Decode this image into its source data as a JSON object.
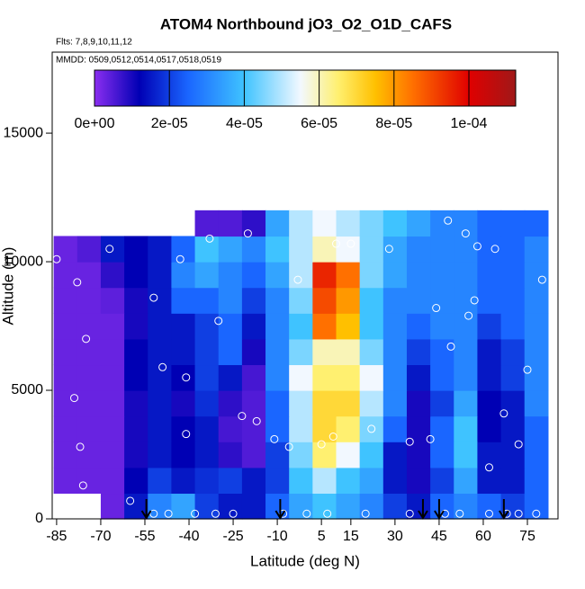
{
  "chart_data": {
    "type": "heatmap",
    "title": "ATOM4 Northbound jO3_O2_O1D_CAFS",
    "subtitle": "Flts: 7,8,9,10,11,12",
    "annotation": "MMDD: 0509,0512,0514,0517,0518,0519",
    "xlabel": "Latitude (deg N)",
    "ylabel": "Altitude (m)",
    "xlim": [
      -86.5,
      85.4
    ],
    "ylim": [
      0,
      18150
    ],
    "xticks": [
      -85,
      -70,
      -55,
      -40,
      -25,
      -10,
      5,
      15,
      30,
      45,
      60,
      75
    ],
    "yticks": [
      0,
      5000,
      10000,
      15000
    ],
    "x_edges": [
      -86,
      -78,
      -70,
      -62,
      -54,
      -46,
      -38,
      -30,
      -22,
      -14,
      -6,
      2,
      10,
      18,
      26,
      34,
      42,
      50,
      58,
      66,
      74,
      82
    ],
    "y_edges": [
      0,
      1000,
      2000,
      3000,
      4000,
      5000,
      6000,
      7000,
      8000,
      9000,
      10000,
      11000,
      12000
    ],
    "z": [
      [
        null,
        null,
        3e-06,
        1.5e-05,
        3e-05,
        3.5e-05,
        2e-05,
        1.5e-05,
        1.5e-05,
        2.5e-05,
        3.5e-05,
        4e-05,
        3.5e-05,
        3e-05,
        2e-05,
        1.5e-05,
        2.5e-05,
        3e-05,
        2.5e-05,
        2e-05,
        2.5e-05
      ],
      [
        3e-06,
        3e-06,
        3e-06,
        1.2e-05,
        2e-05,
        1.5e-05,
        1.8e-05,
        2e-05,
        1.5e-05,
        2e-05,
        4e-05,
        5e-05,
        4e-05,
        3.5e-05,
        1.5e-05,
        1e-05,
        2e-05,
        3.5e-05,
        1.5e-05,
        1.5e-05,
        2.5e-05
      ],
      [
        3e-06,
        3e-06,
        3e-06,
        1e-05,
        1.5e-05,
        1.2e-05,
        1.5e-05,
        8e-06,
        5e-06,
        2e-05,
        4.5e-05,
        6.5e-05,
        5.5e-05,
        4e-05,
        1.5e-05,
        1e-05,
        2.5e-05,
        4e-05,
        1.5e-05,
        1.5e-05,
        2.5e-05
      ],
      [
        3e-06,
        3e-06,
        3e-06,
        1e-05,
        1.5e-05,
        1.2e-05,
        1.5e-05,
        6e-06,
        5e-06,
        2.5e-05,
        5e-05,
        7e-05,
        6.5e-05,
        4.5e-05,
        2.5e-05,
        1e-05,
        2.5e-05,
        4e-05,
        1.2e-05,
        1.5e-05,
        2.5e-05
      ],
      [
        3e-06,
        3e-06,
        3e-06,
        1e-05,
        1.5e-05,
        1e-05,
        1.8e-05,
        8e-06,
        5e-06,
        2.5e-05,
        5e-05,
        7e-05,
        7e-05,
        5e-05,
        3e-05,
        1e-05,
        2e-05,
        3.5e-05,
        1.2e-05,
        1.5e-05,
        3e-05
      ],
      [
        3e-06,
        3e-06,
        3e-06,
        1.2e-05,
        1.5e-05,
        1.2e-05,
        2e-05,
        1.5e-05,
        6e-06,
        3e-05,
        5.5e-05,
        6.5e-05,
        6.5e-05,
        5.5e-05,
        3e-05,
        1.5e-05,
        2.5e-05,
        3e-05,
        1.5e-05,
        2e-05,
        3e-05
      ],
      [
        3e-06,
        3e-06,
        3e-06,
        1.2e-05,
        1.5e-05,
        1.5e-05,
        2e-05,
        2.5e-05,
        1e-05,
        3e-05,
        4.5e-05,
        6e-05,
        6e-05,
        4.5e-05,
        3e-05,
        2e-05,
        2.5e-05,
        3e-05,
        1.5e-05,
        2e-05,
        3e-05
      ],
      [
        3e-06,
        3e-06,
        3e-06,
        1e-05,
        1.5e-05,
        1.5e-05,
        2e-05,
        2.5e-05,
        1.5e-05,
        3e-05,
        4e-05,
        8.5e-05,
        7.5e-05,
        4e-05,
        3e-05,
        2.5e-05,
        3e-05,
        3e-05,
        2e-05,
        2.5e-05,
        3e-05
      ],
      [
        3e-06,
        3e-06,
        4e-06,
        1e-05,
        1.5e-05,
        2.5e-05,
        2.5e-05,
        3e-05,
        2e-05,
        3e-05,
        4.5e-05,
        9e-05,
        8e-05,
        4e-05,
        3e-05,
        3e-05,
        3e-05,
        3e-05,
        2.5e-05,
        2.5e-05,
        3e-05
      ],
      [
        3e-06,
        3e-06,
        8e-06,
        1.2e-05,
        1.5e-05,
        3e-05,
        3.5e-05,
        3e-05,
        2.5e-05,
        3.5e-05,
        5e-05,
        9.5e-05,
        8.5e-05,
        4.5e-05,
        3.5e-05,
        3e-05,
        3e-05,
        3e-05,
        2.5e-05,
        2.5e-05,
        3e-05
      ],
      [
        3e-06,
        5e-06,
        1.5e-05,
        1.2e-05,
        1.5e-05,
        2.5e-05,
        4e-05,
        3.5e-05,
        3e-05,
        4e-05,
        5e-05,
        6e-05,
        5.5e-05,
        4.5e-05,
        3.5e-05,
        3e-05,
        3e-05,
        3e-05,
        2.5e-05,
        2.5e-05,
        3e-05
      ],
      [
        null,
        null,
        null,
        null,
        null,
        null,
        5e-06,
        5e-06,
        8e-06,
        3.5e-05,
        5e-05,
        5.5e-05,
        5e-05,
        4.5e-05,
        4e-05,
        3.5e-05,
        3e-05,
        3e-05,
        2.5e-05,
        2.5e-05,
        2.5e-05
      ]
    ],
    "colorscale": [
      [
        0,
        "#8b2ef0"
      ],
      [
        1.2e-05,
        "#0000b4"
      ],
      [
        2.5e-05,
        "#1a66ff"
      ],
      [
        4e-05,
        "#3fc3ff"
      ],
      [
        5.5e-05,
        "#f2f8ff"
      ],
      [
        6.5e-05,
        "#fff070"
      ],
      [
        7.5e-05,
        "#ffc000"
      ],
      [
        8.5e-05,
        "#ff7000"
      ],
      [
        0.0001,
        "#e00000"
      ],
      [
        0.0001125,
        "#a01818"
      ]
    ],
    "clim": [
      0,
      0.0001125
    ],
    "cticks": [
      {
        "value": 0,
        "label": "0e+00"
      },
      {
        "value": 2e-05,
        "label": "2e-05"
      },
      {
        "value": 4e-05,
        "label": "4e-05"
      },
      {
        "value": 6e-05,
        "label": "6e-05"
      },
      {
        "value": 8e-05,
        "label": "8e-05"
      },
      {
        "value": 0.0001,
        "label": "1e-04"
      }
    ],
    "points": {
      "x": [
        -85,
        -78,
        -75,
        -79,
        -77,
        -76,
        -67,
        -52,
        -49,
        -43,
        -41,
        -41,
        -33,
        -30,
        -22,
        -17,
        -11,
        -6,
        -3,
        5,
        9,
        10,
        15,
        22,
        28,
        35,
        42,
        49,
        44,
        55,
        57,
        62,
        67,
        72,
        75,
        80,
        58,
        64,
        -60,
        54,
        48,
        -20,
        -52,
        -47,
        -38,
        -31,
        -25,
        -8,
        0,
        7,
        20,
        35,
        47,
        52,
        62,
        68,
        72,
        78
      ],
      "y": [
        10100,
        9200,
        7000,
        4700,
        2800,
        1300,
        10500,
        8600,
        5900,
        10100,
        5500,
        3300,
        10900,
        7700,
        4000,
        3800,
        3100,
        2800,
        9300,
        2900,
        3200,
        10700,
        10700,
        3500,
        10500,
        3000,
        3100,
        6700,
        8200,
        7900,
        8500,
        2000,
        4100,
        2900,
        5800,
        9300,
        10600,
        10500,
        700,
        11100,
        11600,
        11100,
        200,
        200,
        200,
        200,
        200,
        200,
        200,
        200,
        200,
        200,
        200,
        200,
        200,
        200,
        200,
        200
      ]
    },
    "arrows": [
      -54.5,
      -9,
      39.5,
      45,
      67
    ]
  }
}
